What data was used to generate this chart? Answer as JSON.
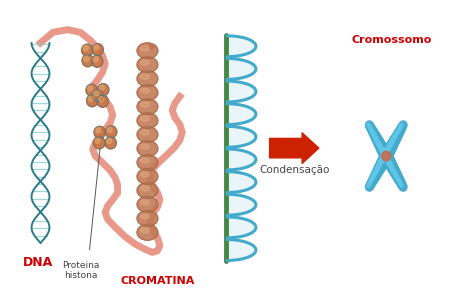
{
  "background_color": "#ffffff",
  "labels": {
    "dna": "DNA",
    "dna_color": "#cc0000",
    "proteina": "Proteina\nhistona",
    "proteina_color": "#444444",
    "cromatina": "CROMATINA",
    "cromatina_color": "#cc0000",
    "condensacao": "Condensação",
    "condensacao_color": "#444444",
    "cromossomo": "Cromossomo",
    "cromossomo_color": "#cc0000"
  },
  "arrow_color": "#cc2200",
  "dna_color1": "#2a7a8a",
  "dna_color2": "#2a7a8a",
  "dna_rung_color": "#88cccc",
  "backbone_color": "#e8998a",
  "histone_base": "#c87040",
  "histone_shine": "#e8aa70",
  "histone_stripe": "#3a7a8a",
  "solenoid_main": "#44aacc",
  "solenoid_fill": "#c8e8f0",
  "solenoid_green": "#448844",
  "chrom_color": "#44aacc",
  "chrom_center": "#cc6644"
}
